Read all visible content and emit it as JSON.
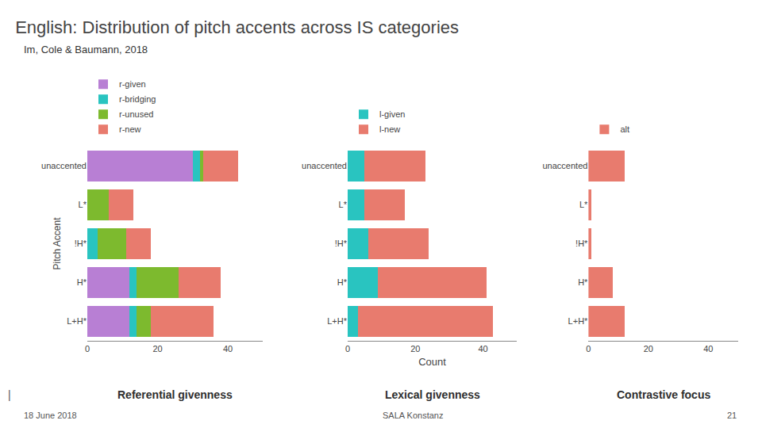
{
  "title": "English: Distribution of pitch accents across IS categories",
  "subtitle": "Im, Cole & Baumann, 2018",
  "annotations": [
    "18 June 2018",
    "SALA Konstanz",
    "21",
    "|"
  ],
  "chart_data": [
    {
      "type": "bar",
      "orientation": "horizontal",
      "stacked": true,
      "title": "Referential givenness",
      "ylabel": "Pitch Accent",
      "categories": [
        "L+H*",
        "H*",
        "!H*",
        "L*",
        "unaccented"
      ],
      "series": [
        {
          "name": "r-given",
          "color": "#b87fd4",
          "values": [
            12,
            12,
            0,
            0,
            30
          ]
        },
        {
          "name": "r-bridging",
          "color": "#29c4c0",
          "values": [
            2,
            2,
            3,
            0,
            2
          ]
        },
        {
          "name": "r-unused",
          "color": "#7dba2e",
          "values": [
            4,
            12,
            8,
            6,
            1
          ]
        },
        {
          "name": "r-new",
          "color": "#e87b6e",
          "values": [
            18,
            12,
            7,
            7,
            10
          ]
        }
      ],
      "xlim": [
        0,
        50
      ],
      "xticks": [
        0,
        20,
        40
      ],
      "grid": false,
      "legend": "top"
    },
    {
      "type": "bar",
      "orientation": "horizontal",
      "stacked": true,
      "title": "Lexical givenness",
      "xlabel": "Count",
      "categories": [
        "L+H*",
        "H*",
        "!H*",
        "L*",
        "unaccented"
      ],
      "series": [
        {
          "name": "l-given",
          "color": "#29c4c0",
          "values": [
            3,
            9,
            6,
            5,
            5
          ]
        },
        {
          "name": "l-new",
          "color": "#e87b6e",
          "values": [
            40,
            32,
            18,
            12,
            18
          ]
        }
      ],
      "xlim": [
        0,
        50
      ],
      "xticks": [
        0,
        20,
        40
      ],
      "grid": false,
      "legend": "top"
    },
    {
      "type": "bar",
      "orientation": "horizontal",
      "stacked": true,
      "title": "Contrastive focus",
      "categories": [
        "L+H*",
        "H*",
        "!H*",
        "L*",
        "unaccented"
      ],
      "series": [
        {
          "name": "alt",
          "color": "#e87b6e",
          "values": [
            12,
            8,
            1,
            1,
            12
          ]
        }
      ],
      "xlim": [
        0,
        50
      ],
      "xticks": [
        0,
        20,
        40
      ],
      "grid": false,
      "legend": "top"
    }
  ]
}
